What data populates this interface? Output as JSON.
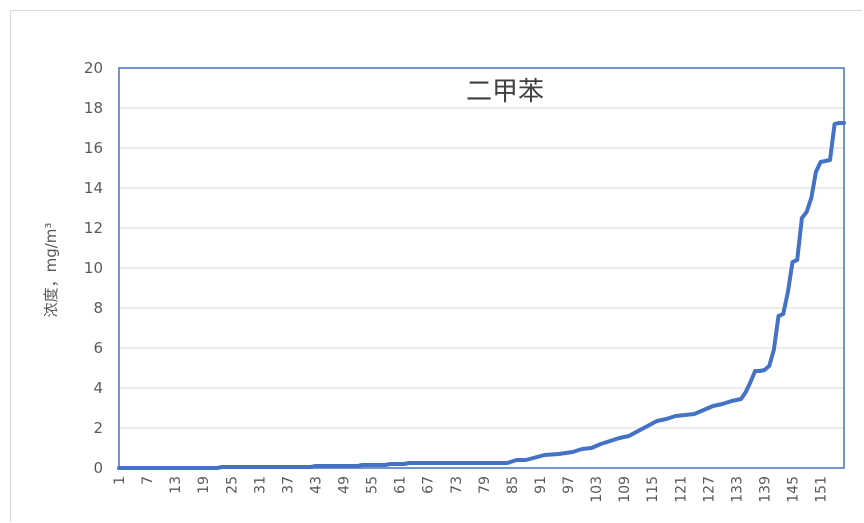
{
  "chart_data": {
    "type": "line",
    "title": "二甲苯",
    "ylabel": "浓度，mg/m³",
    "xlabel": "",
    "x_start": 1,
    "x_end": 156,
    "ylim": [
      0,
      20
    ],
    "yticks": [
      "0",
      "2",
      "4",
      "6",
      "8",
      "10",
      "12",
      "14",
      "16",
      "18",
      "20"
    ],
    "xticks": [
      "1",
      "7",
      "13",
      "19",
      "25",
      "31",
      "37",
      "43",
      "49",
      "55",
      "61",
      "67",
      "73",
      "79",
      "85",
      "91",
      "97",
      "103",
      "109",
      "115",
      "121",
      "127",
      "133",
      "139",
      "145",
      "151"
    ],
    "grid": true,
    "line_color": "#4472c4",
    "series": [
      {
        "x": [
          1,
          22,
          23,
          42,
          43,
          52,
          53,
          58,
          59,
          62,
          63,
          84,
          86,
          88,
          92,
          95,
          98,
          100,
          102,
          104,
          106,
          108,
          110,
          112,
          114,
          116,
          118,
          120,
          122,
          124,
          126,
          128,
          130,
          132,
          134,
          135,
          136,
          137,
          138,
          139,
          140,
          141,
          142,
          143,
          144,
          145,
          146,
          147,
          148,
          149,
          150,
          151,
          152,
          153,
          154,
          155,
          156
        ],
        "values": [
          0.0,
          0.0,
          0.05,
          0.05,
          0.1,
          0.1,
          0.15,
          0.15,
          0.2,
          0.2,
          0.25,
          0.25,
          0.4,
          0.4,
          0.65,
          0.7,
          0.8,
          0.95,
          1.0,
          1.2,
          1.35,
          1.5,
          1.6,
          1.85,
          2.1,
          2.35,
          2.45,
          2.6,
          2.65,
          2.7,
          2.9,
          3.1,
          3.2,
          3.35,
          3.45,
          3.8,
          4.3,
          4.85,
          4.85,
          4.9,
          5.1,
          5.9,
          7.6,
          7.7,
          8.8,
          10.3,
          10.4,
          12.5,
          12.8,
          13.5,
          14.8,
          15.3,
          15.35,
          15.4,
          17.2,
          17.25,
          17.25
        ]
      }
    ]
  }
}
